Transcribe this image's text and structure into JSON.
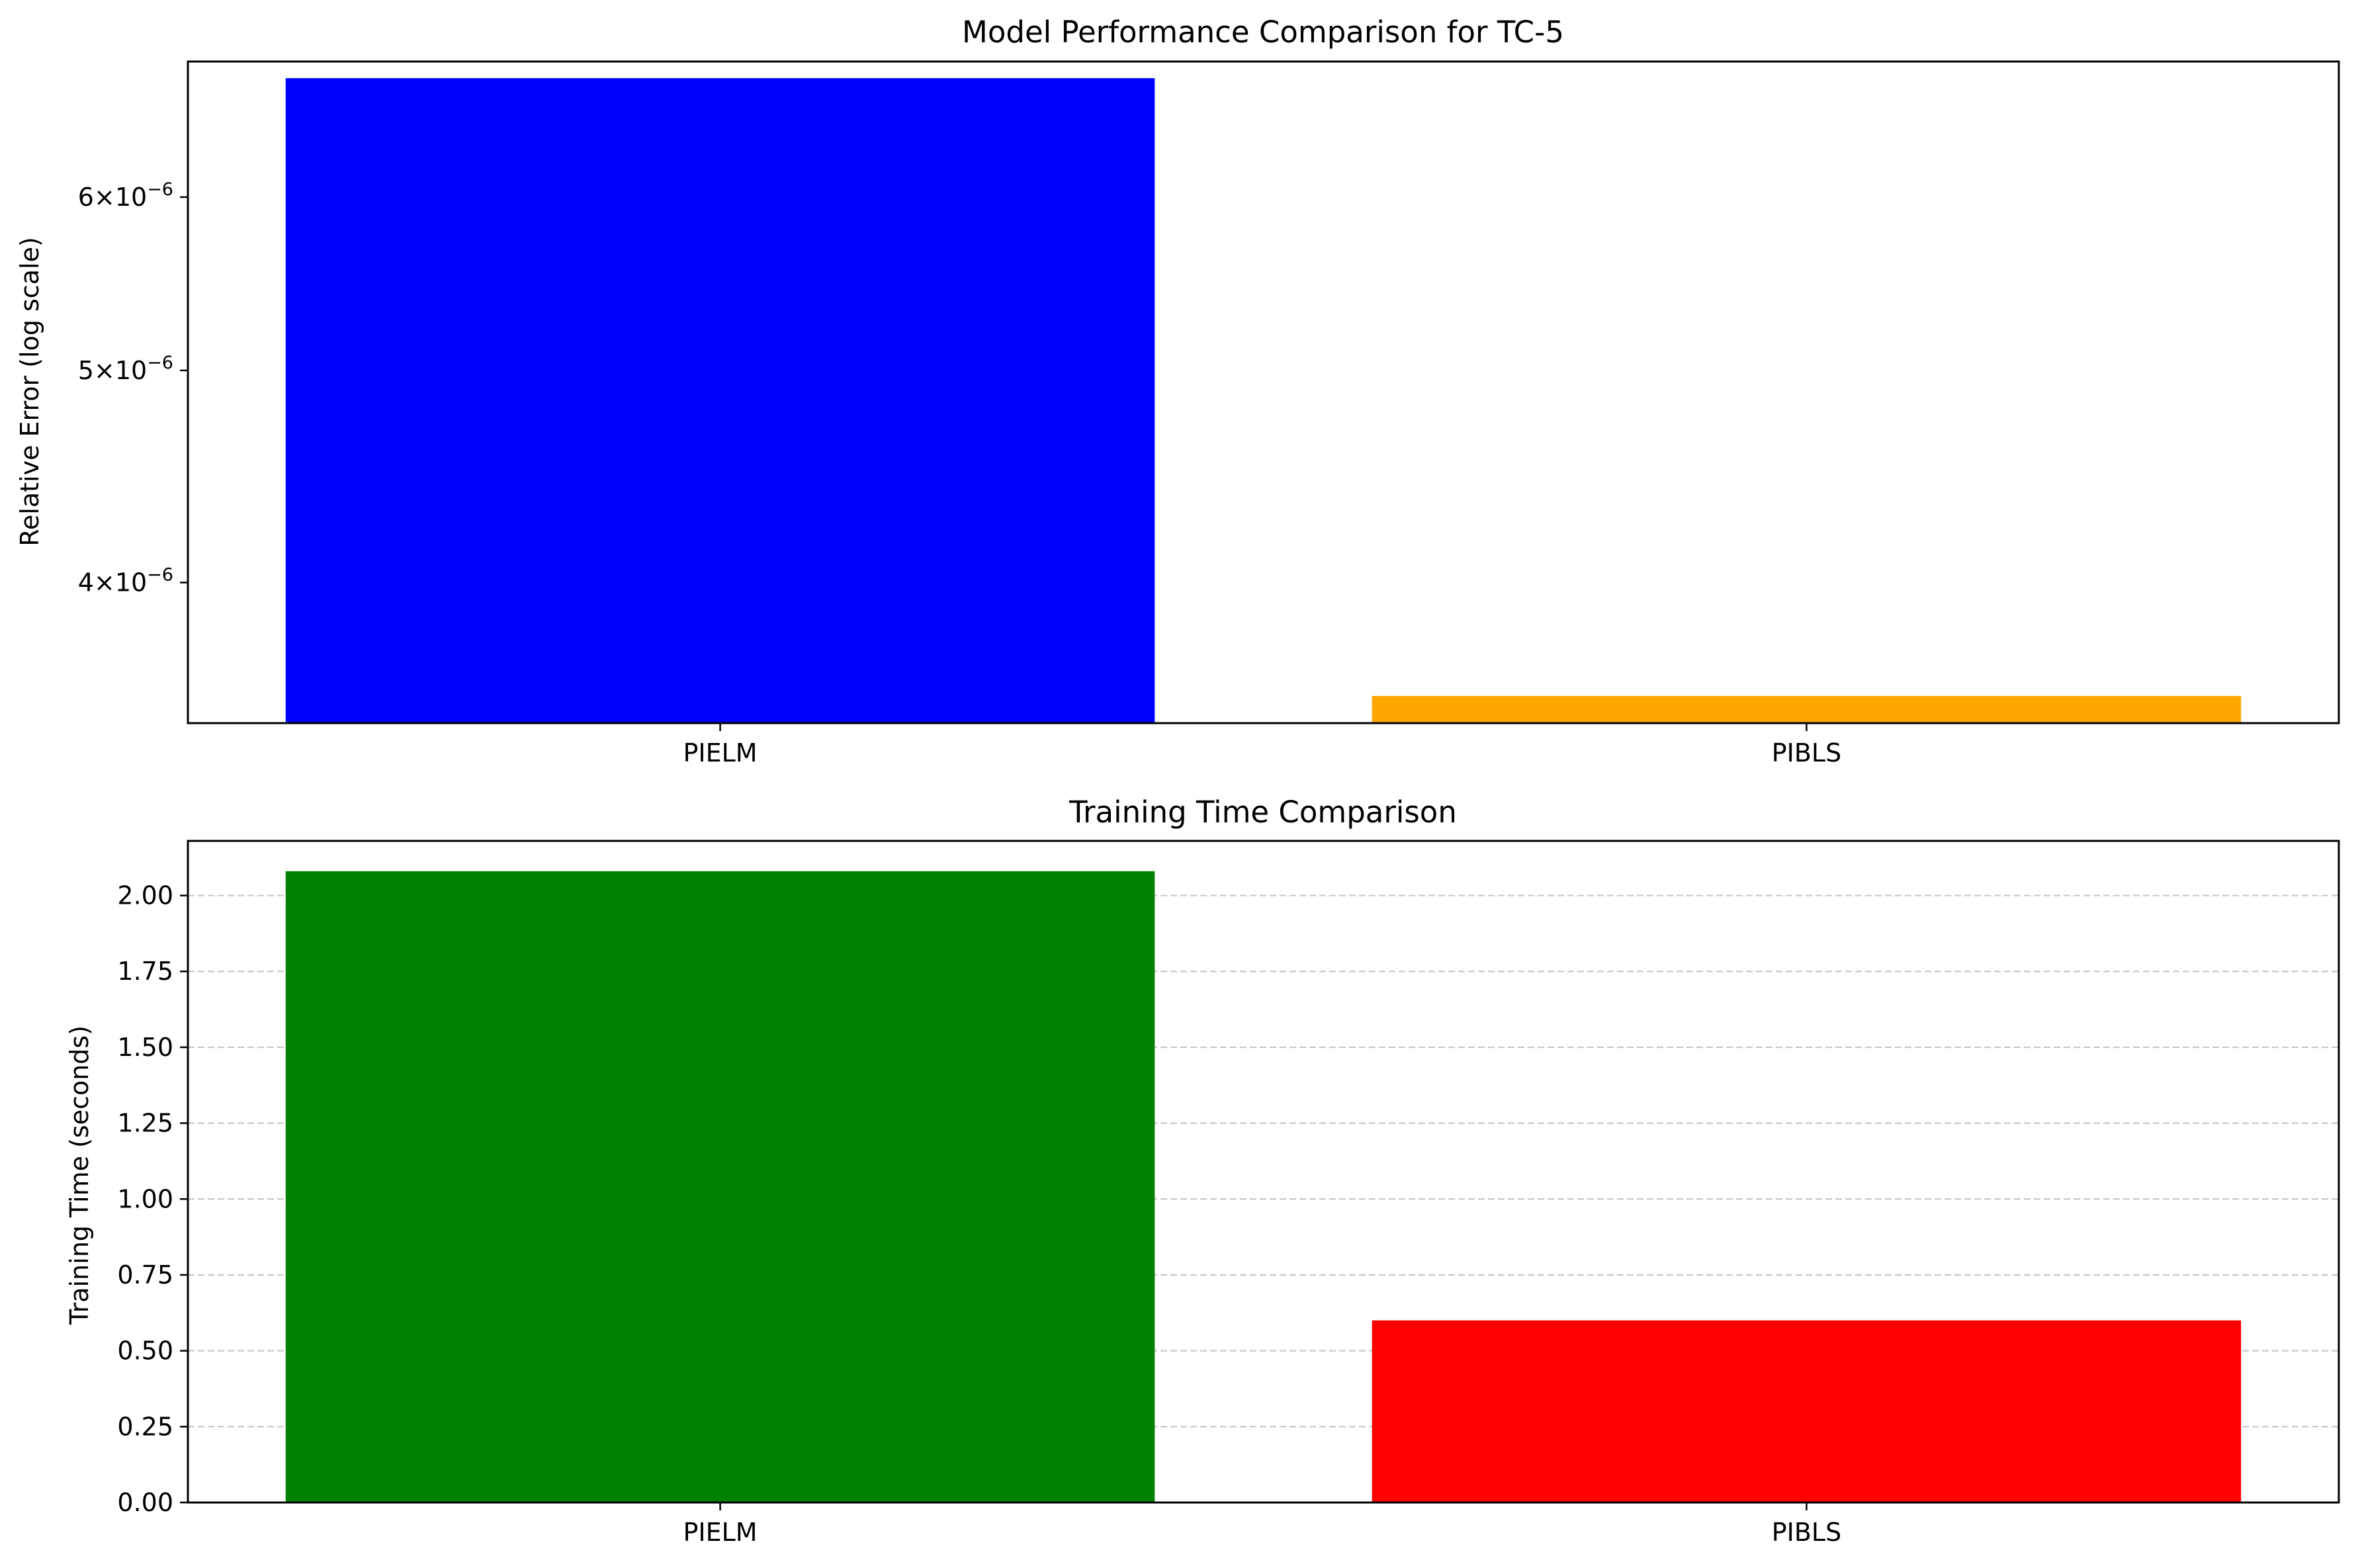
{
  "chart_data": [
    {
      "type": "bar",
      "title": "Model Performance Comparison for TC-5",
      "xlabel": "",
      "ylabel": "Relative Error (log scale)",
      "yscale": "log",
      "categories": [
        "PIELM",
        "PIBLS"
      ],
      "values": [
        6.8e-06,
        3.55e-06
      ],
      "colors": [
        "#0000ff",
        "#ffa500"
      ],
      "ylim": [
        3.45e-06,
        6.92e-06
      ],
      "yticks": [
        {
          "value": 4e-06,
          "mantissa": "4",
          "base": "10",
          "exp": "−6"
        },
        {
          "value": 5e-06,
          "mantissa": "5",
          "base": "10",
          "exp": "−6"
        },
        {
          "value": 6e-06,
          "mantissa": "6",
          "base": "10",
          "exp": "−6"
        }
      ],
      "grid": false
    },
    {
      "type": "bar",
      "title": "Training Time Comparison",
      "xlabel": "",
      "ylabel": "Training Time (seconds)",
      "yscale": "linear",
      "categories": [
        "PIELM",
        "PIBLS"
      ],
      "values": [
        2.08,
        0.6
      ],
      "colors": [
        "#008000",
        "#ff0000"
      ],
      "ylim": [
        0,
        2.18
      ],
      "yticks": [
        {
          "value": 0,
          "label": "0.00"
        },
        {
          "value": 0.25,
          "label": "0.25"
        },
        {
          "value": 0.5,
          "label": "0.50"
        },
        {
          "value": 0.75,
          "label": "0.75"
        },
        {
          "value": 1.0,
          "label": "1.00"
        },
        {
          "value": 1.25,
          "label": "1.25"
        },
        {
          "value": 1.5,
          "label": "1.50"
        },
        {
          "value": 1.75,
          "label": "1.75"
        },
        {
          "value": 2.0,
          "label": "2.00"
        }
      ],
      "grid": true,
      "grid_axis": "y",
      "grid_style": "dashed"
    }
  ]
}
